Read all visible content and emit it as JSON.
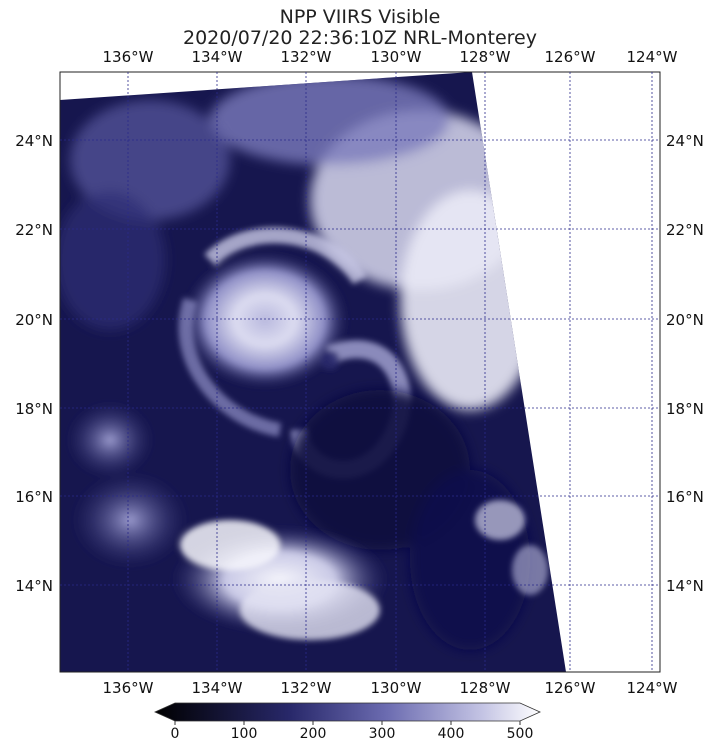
{
  "title": {
    "line1": "NPP VIIRS Visible",
    "line2": "2020/07/20 22:36:10Z NRL-Monterey"
  },
  "map": {
    "lon_ticks_top": [
      "136°W",
      "134°W",
      "132°W",
      "130°W",
      "128°W",
      "126°W",
      "124°W"
    ],
    "lon_ticks_bottom": [
      "136°W",
      "134°W",
      "132°W",
      "130°W",
      "128°W",
      "126°W",
      "124°W"
    ],
    "lat_ticks_left": [
      "24°N",
      "22°N",
      "20°N",
      "18°N",
      "16°N",
      "14°N"
    ],
    "lat_ticks_right": [
      "24°N",
      "22°N",
      "20°N",
      "18°N",
      "16°N",
      "14°N"
    ],
    "colors": {
      "background": "#ffffff",
      "dark_ocean": "#12124a",
      "cloud": "#eeeef8",
      "grid": "#2a2a8a"
    }
  },
  "colorbar": {
    "labels": [
      "0",
      "100",
      "200",
      "300",
      "400",
      "500"
    ],
    "min": 0,
    "max": 500,
    "color_low": "#000000",
    "color_mid": "#6b6bb0",
    "color_high": "#ffffff"
  }
}
